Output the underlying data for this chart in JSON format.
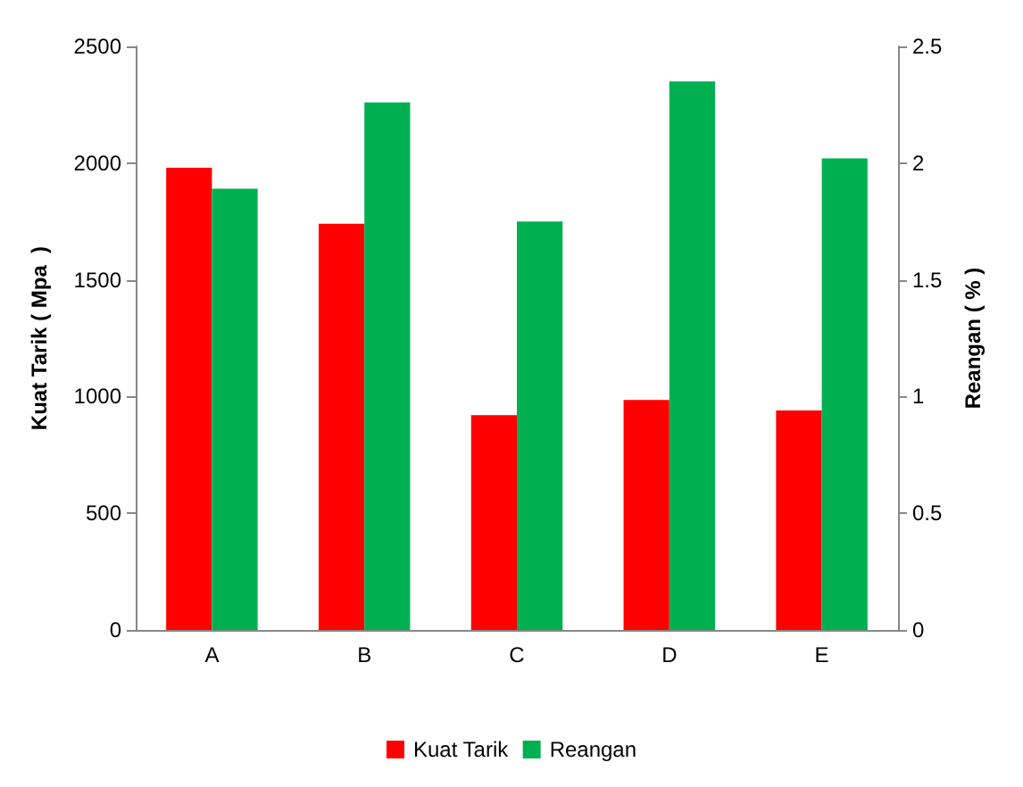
{
  "chart_data": {
    "type": "bar",
    "categories": [
      "A",
      "B",
      "C",
      "D",
      "E"
    ],
    "ylabel": "Kuat Tarik ( Mpa  )",
    "y2label": "Reangan ( % )",
    "series": [
      {
        "name": "Kuat Tarik",
        "color": "#ff0000",
        "values": [
          1980,
          1740,
          920,
          985,
          940
        ]
      },
      {
        "name": "Reangan",
        "color": "#00b050",
        "values": [
          1.89,
          2.26,
          1.75,
          2.35,
          2.02
        ],
        "axis": "y2"
      }
    ],
    "ylim": [
      0,
      2500
    ],
    "yticks": [
      0,
      500,
      1000,
      1500,
      2000,
      2500
    ],
    "y2lim": [
      0,
      2.5
    ],
    "y2ticks": [
      0,
      0.5,
      1,
      1.5,
      2,
      2.5
    ],
    "grid": false,
    "legend": "bottom"
  }
}
